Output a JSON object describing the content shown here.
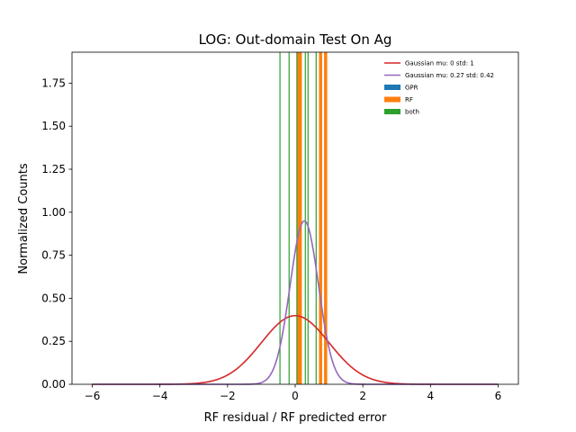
{
  "chart_data": {
    "type": "line",
    "title": "LOG: Out-domain Test On Ag",
    "xlabel": "RF residual / RF predicted error",
    "ylabel": "Normalized Counts",
    "xlim": [
      -6.6,
      6.6
    ],
    "ylim": [
      0,
      1.93
    ],
    "xticks": [
      -6,
      -4,
      -2,
      0,
      2,
      4,
      6
    ],
    "xtick_labels": [
      "−6",
      "−4",
      "−2",
      "0",
      "2",
      "4",
      "6"
    ],
    "yticks": [
      0.0,
      0.25,
      0.5,
      0.75,
      1.0,
      1.25,
      1.5,
      1.75
    ],
    "ytick_labels": [
      "0.00",
      "0.25",
      "0.50",
      "0.75",
      "1.00",
      "1.25",
      "1.50",
      "1.75"
    ],
    "grid": false,
    "legend_position": "top-right",
    "series": [
      {
        "name": "Gaussian mu: 0 std: 1",
        "kind": "gaussian",
        "mu": 0,
        "std": 1,
        "color": "#d62728"
      },
      {
        "name": "Gaussian mu: 0.27 std: 0.42",
        "kind": "gaussian",
        "mu": 0.27,
        "std": 0.42,
        "color": "#9467bd"
      }
    ],
    "histograms": [
      {
        "name": "GPR",
        "color": "#1f77b4",
        "values": []
      },
      {
        "name": "RF",
        "color": "#ff7f0e",
        "values": [
          0.1,
          0.15,
          0.75,
          0.9
        ]
      },
      {
        "name": "both",
        "color": "#2ca02c",
        "values": [
          -0.45,
          -0.18,
          0.05,
          0.3,
          0.38,
          0.62
        ]
      }
    ]
  }
}
